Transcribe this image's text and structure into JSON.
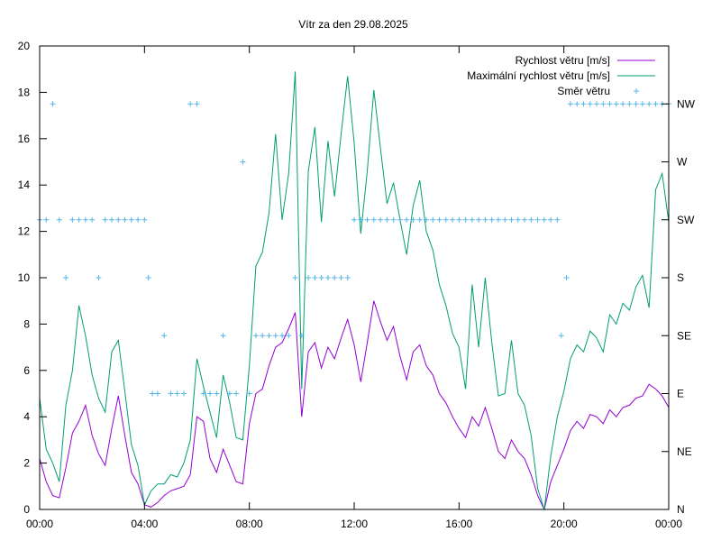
{
  "chart_data": {
    "type": "line",
    "title": "Vítr za den 29.08.2025",
    "xlabel": "",
    "ylabel": "",
    "xlim": [
      "00:00",
      "24:00"
    ],
    "ylim": [
      0,
      20
    ],
    "x_ticks": [
      "00:00",
      "04:00",
      "08:00",
      "12:00",
      "16:00",
      "20:00",
      "00:00"
    ],
    "y_ticks": [
      0,
      2,
      4,
      6,
      8,
      10,
      12,
      14,
      16,
      18,
      20
    ],
    "y2_ticks": [
      "N",
      "NE",
      "E",
      "SE",
      "S",
      "SW",
      "W",
      "NW"
    ],
    "grid": false,
    "legend_position": "top-right",
    "series": [
      {
        "name": "Rychlost větru [m/s]",
        "color": "#9400d3",
        "style": "line",
        "x_hours": [
          0,
          0.25,
          0.5,
          0.75,
          1,
          1.25,
          1.5,
          1.75,
          2,
          2.25,
          2.5,
          2.75,
          3,
          3.25,
          3.5,
          3.75,
          4,
          4.25,
          4.5,
          4.75,
          5,
          5.25,
          5.5,
          5.75,
          6,
          6.25,
          6.5,
          6.75,
          7,
          7.25,
          7.5,
          7.75,
          8,
          8.25,
          8.5,
          8.75,
          9,
          9.25,
          9.5,
          9.75,
          10,
          10.25,
          10.5,
          10.75,
          11,
          11.25,
          11.5,
          11.75,
          12,
          12.25,
          12.5,
          12.75,
          13,
          13.25,
          13.5,
          13.75,
          14,
          14.25,
          14.5,
          14.75,
          15,
          15.25,
          15.5,
          15.75,
          16,
          16.25,
          16.5,
          16.75,
          17,
          17.25,
          17.5,
          17.75,
          18,
          18.25,
          18.5,
          18.75,
          19,
          19.25,
          19.5,
          19.75,
          20,
          20.25,
          20.5,
          20.75,
          21,
          21.25,
          21.5,
          21.75,
          22,
          22.25,
          22.5,
          22.75,
          23,
          23.25,
          23.5,
          23.75,
          24
        ],
        "values": [
          2.2,
          1.2,
          0.6,
          0.5,
          1.8,
          3.3,
          3.8,
          4.5,
          3.2,
          2.4,
          1.9,
          3.5,
          4.9,
          3.2,
          1.6,
          1.1,
          0.2,
          0.1,
          0.3,
          0.6,
          0.8,
          0.9,
          1.0,
          1.5,
          4.0,
          3.8,
          2.2,
          1.6,
          2.6,
          1.9,
          1.2,
          1.1,
          3.7,
          5.0,
          5.2,
          6.2,
          7.0,
          7.2,
          7.8,
          8.5,
          4.0,
          6.8,
          7.2,
          6.1,
          7.0,
          6.5,
          7.4,
          8.2,
          7.1,
          5.5,
          7.2,
          9.0,
          8.1,
          7.3,
          7.9,
          6.6,
          5.6,
          6.8,
          7.1,
          6.2,
          5.8,
          5.0,
          4.6,
          4.0,
          3.5,
          3.1,
          4.0,
          3.6,
          4.4,
          3.5,
          2.5,
          2.2,
          3.0,
          2.5,
          2.2,
          1.5,
          0.6,
          0.0,
          1.2,
          1.9,
          2.6,
          3.4,
          3.8,
          3.5,
          4.1,
          4.0,
          3.7,
          4.3,
          4.0,
          4.4,
          4.5,
          4.8,
          4.9,
          5.4,
          5.2,
          4.9,
          4.4
        ]
      },
      {
        "name": "Maximální rychlost větru [m/s]",
        "color": "#009e73",
        "style": "line",
        "x_hours": [
          0,
          0.25,
          0.5,
          0.75,
          1,
          1.25,
          1.5,
          1.75,
          2,
          2.25,
          2.5,
          2.75,
          3,
          3.25,
          3.5,
          3.75,
          4,
          4.25,
          4.5,
          4.75,
          5,
          5.25,
          5.5,
          5.75,
          6,
          6.25,
          6.5,
          6.75,
          7,
          7.25,
          7.5,
          7.75,
          8,
          8.25,
          8.5,
          8.75,
          9,
          9.25,
          9.5,
          9.75,
          10,
          10.25,
          10.5,
          10.75,
          11,
          11.25,
          11.5,
          11.75,
          12,
          12.25,
          12.5,
          12.75,
          13,
          13.25,
          13.5,
          13.75,
          14,
          14.25,
          14.5,
          14.75,
          15,
          15.25,
          15.5,
          15.75,
          16,
          16.25,
          16.5,
          16.75,
          17,
          17.25,
          17.5,
          17.75,
          18,
          18.25,
          18.5,
          18.75,
          19,
          19.25,
          19.5,
          19.75,
          20,
          20.25,
          20.5,
          20.75,
          21,
          21.25,
          21.5,
          21.75,
          22,
          22.25,
          22.5,
          22.75,
          23,
          23.25,
          23.5,
          23.75,
          24
        ],
        "values": [
          4.8,
          2.6,
          2.0,
          1.2,
          4.5,
          6.0,
          8.8,
          7.5,
          5.8,
          4.8,
          4.2,
          6.8,
          7.3,
          5.1,
          2.8,
          1.9,
          0.2,
          0.8,
          1.1,
          1.1,
          1.5,
          1.4,
          2.0,
          3.0,
          6.5,
          5.3,
          4.2,
          3.1,
          5.8,
          4.6,
          3.1,
          3.0,
          6.2,
          10.5,
          11.1,
          12.8,
          16.2,
          12.5,
          14.5,
          18.9,
          5.2,
          14.6,
          16.5,
          12.4,
          15.9,
          13.5,
          16.2,
          18.7,
          15.8,
          11.9,
          14.6,
          18.1,
          15.6,
          13.2,
          14.1,
          12.5,
          11.0,
          13.1,
          14.2,
          12.0,
          11.2,
          9.7,
          8.8,
          7.6,
          7.0,
          5.2,
          9.7,
          7.0,
          10.0,
          7.2,
          4.9,
          5.0,
          7.3,
          5.0,
          4.5,
          3.2,
          0.9,
          0.0,
          2.3,
          4.0,
          5.1,
          6.5,
          7.1,
          6.8,
          7.7,
          7.4,
          6.8,
          8.4,
          8.0,
          8.9,
          8.6,
          9.6,
          10.1,
          8.7,
          13.8,
          14.5,
          12.4
        ]
      },
      {
        "name": "Směr větru",
        "color": "#56b4e9",
        "style": "points",
        "points": [
          {
            "x": 0.0,
            "y": 12.5
          },
          {
            "x": 0.25,
            "y": 12.5
          },
          {
            "x": 0.5,
            "y": 17.5
          },
          {
            "x": 0.75,
            "y": 12.5
          },
          {
            "x": 1.0,
            "y": 10.0
          },
          {
            "x": 1.25,
            "y": 12.5
          },
          {
            "x": 1.5,
            "y": 12.5
          },
          {
            "x": 1.75,
            "y": 12.5
          },
          {
            "x": 2.0,
            "y": 12.5
          },
          {
            "x": 2.25,
            "y": 10.0
          },
          {
            "x": 2.5,
            "y": 12.5
          },
          {
            "x": 2.75,
            "y": 12.5
          },
          {
            "x": 3.0,
            "y": 12.5
          },
          {
            "x": 3.25,
            "y": 12.5
          },
          {
            "x": 3.5,
            "y": 12.5
          },
          {
            "x": 3.75,
            "y": 12.5
          },
          {
            "x": 4.0,
            "y": 12.5
          },
          {
            "x": 4.15,
            "y": 10.0
          },
          {
            "x": 4.3,
            "y": 5.0
          },
          {
            "x": 4.5,
            "y": 5.0
          },
          {
            "x": 4.75,
            "y": 7.5
          },
          {
            "x": 5.0,
            "y": 5.0
          },
          {
            "x": 5.25,
            "y": 5.0
          },
          {
            "x": 5.5,
            "y": 5.0
          },
          {
            "x": 5.75,
            "y": 17.5
          },
          {
            "x": 6.0,
            "y": 17.5
          },
          {
            "x": 6.25,
            "y": 5.0
          },
          {
            "x": 6.5,
            "y": 5.0
          },
          {
            "x": 6.75,
            "y": 5.0
          },
          {
            "x": 7.0,
            "y": 7.5
          },
          {
            "x": 7.25,
            "y": 5.0
          },
          {
            "x": 7.5,
            "y": 5.0
          },
          {
            "x": 7.75,
            "y": 15.0
          },
          {
            "x": 8.0,
            "y": 5.0
          },
          {
            "x": 8.25,
            "y": 7.5
          },
          {
            "x": 8.5,
            "y": 7.5
          },
          {
            "x": 8.75,
            "y": 7.5
          },
          {
            "x": 9.0,
            "y": 7.5
          },
          {
            "x": 9.25,
            "y": 7.5
          },
          {
            "x": 9.5,
            "y": 7.5
          },
          {
            "x": 9.75,
            "y": 10.0
          },
          {
            "x": 10.0,
            "y": 7.5
          },
          {
            "x": 10.25,
            "y": 10.0
          },
          {
            "x": 10.5,
            "y": 10.0
          },
          {
            "x": 10.75,
            "y": 10.0
          },
          {
            "x": 11.0,
            "y": 10.0
          },
          {
            "x": 11.25,
            "y": 10.0
          },
          {
            "x": 11.5,
            "y": 10.0
          },
          {
            "x": 11.75,
            "y": 10.0
          },
          {
            "x": 12.0,
            "y": 12.5
          },
          {
            "x": 12.25,
            "y": 12.5
          },
          {
            "x": 12.5,
            "y": 12.5
          },
          {
            "x": 12.75,
            "y": 12.5
          },
          {
            "x": 13.0,
            "y": 12.5
          },
          {
            "x": 13.25,
            "y": 12.5
          },
          {
            "x": 13.5,
            "y": 12.5
          },
          {
            "x": 13.75,
            "y": 12.5
          },
          {
            "x": 14.0,
            "y": 12.5
          },
          {
            "x": 14.25,
            "y": 12.5
          },
          {
            "x": 14.5,
            "y": 12.5
          },
          {
            "x": 14.75,
            "y": 12.5
          },
          {
            "x": 15.0,
            "y": 12.5
          },
          {
            "x": 15.25,
            "y": 12.5
          },
          {
            "x": 15.5,
            "y": 12.5
          },
          {
            "x": 15.75,
            "y": 12.5
          },
          {
            "x": 16.0,
            "y": 12.5
          },
          {
            "x": 16.25,
            "y": 12.5
          },
          {
            "x": 16.5,
            "y": 12.5
          },
          {
            "x": 16.75,
            "y": 12.5
          },
          {
            "x": 17.0,
            "y": 12.5
          },
          {
            "x": 17.25,
            "y": 12.5
          },
          {
            "x": 17.5,
            "y": 12.5
          },
          {
            "x": 17.75,
            "y": 12.5
          },
          {
            "x": 18.0,
            "y": 12.5
          },
          {
            "x": 18.25,
            "y": 12.5
          },
          {
            "x": 18.5,
            "y": 12.5
          },
          {
            "x": 18.75,
            "y": 12.5
          },
          {
            "x": 19.0,
            "y": 12.5
          },
          {
            "x": 19.25,
            "y": 12.5
          },
          {
            "x": 19.5,
            "y": 12.5
          },
          {
            "x": 19.75,
            "y": 12.5
          },
          {
            "x": 19.9,
            "y": 7.5
          },
          {
            "x": 20.1,
            "y": 10.0
          },
          {
            "x": 20.25,
            "y": 17.5
          },
          {
            "x": 20.5,
            "y": 17.5
          },
          {
            "x": 20.75,
            "y": 17.5
          },
          {
            "x": 21.0,
            "y": 17.5
          },
          {
            "x": 21.25,
            "y": 17.5
          },
          {
            "x": 21.5,
            "y": 17.5
          },
          {
            "x": 21.75,
            "y": 17.5
          },
          {
            "x": 22.0,
            "y": 17.5
          },
          {
            "x": 22.25,
            "y": 17.5
          },
          {
            "x": 22.5,
            "y": 17.5
          },
          {
            "x": 22.75,
            "y": 17.5
          },
          {
            "x": 23.0,
            "y": 17.5
          },
          {
            "x": 23.25,
            "y": 17.5
          },
          {
            "x": 23.5,
            "y": 17.5
          },
          {
            "x": 23.75,
            "y": 17.5
          },
          {
            "x": 24.0,
            "y": 17.5
          }
        ]
      }
    ]
  }
}
